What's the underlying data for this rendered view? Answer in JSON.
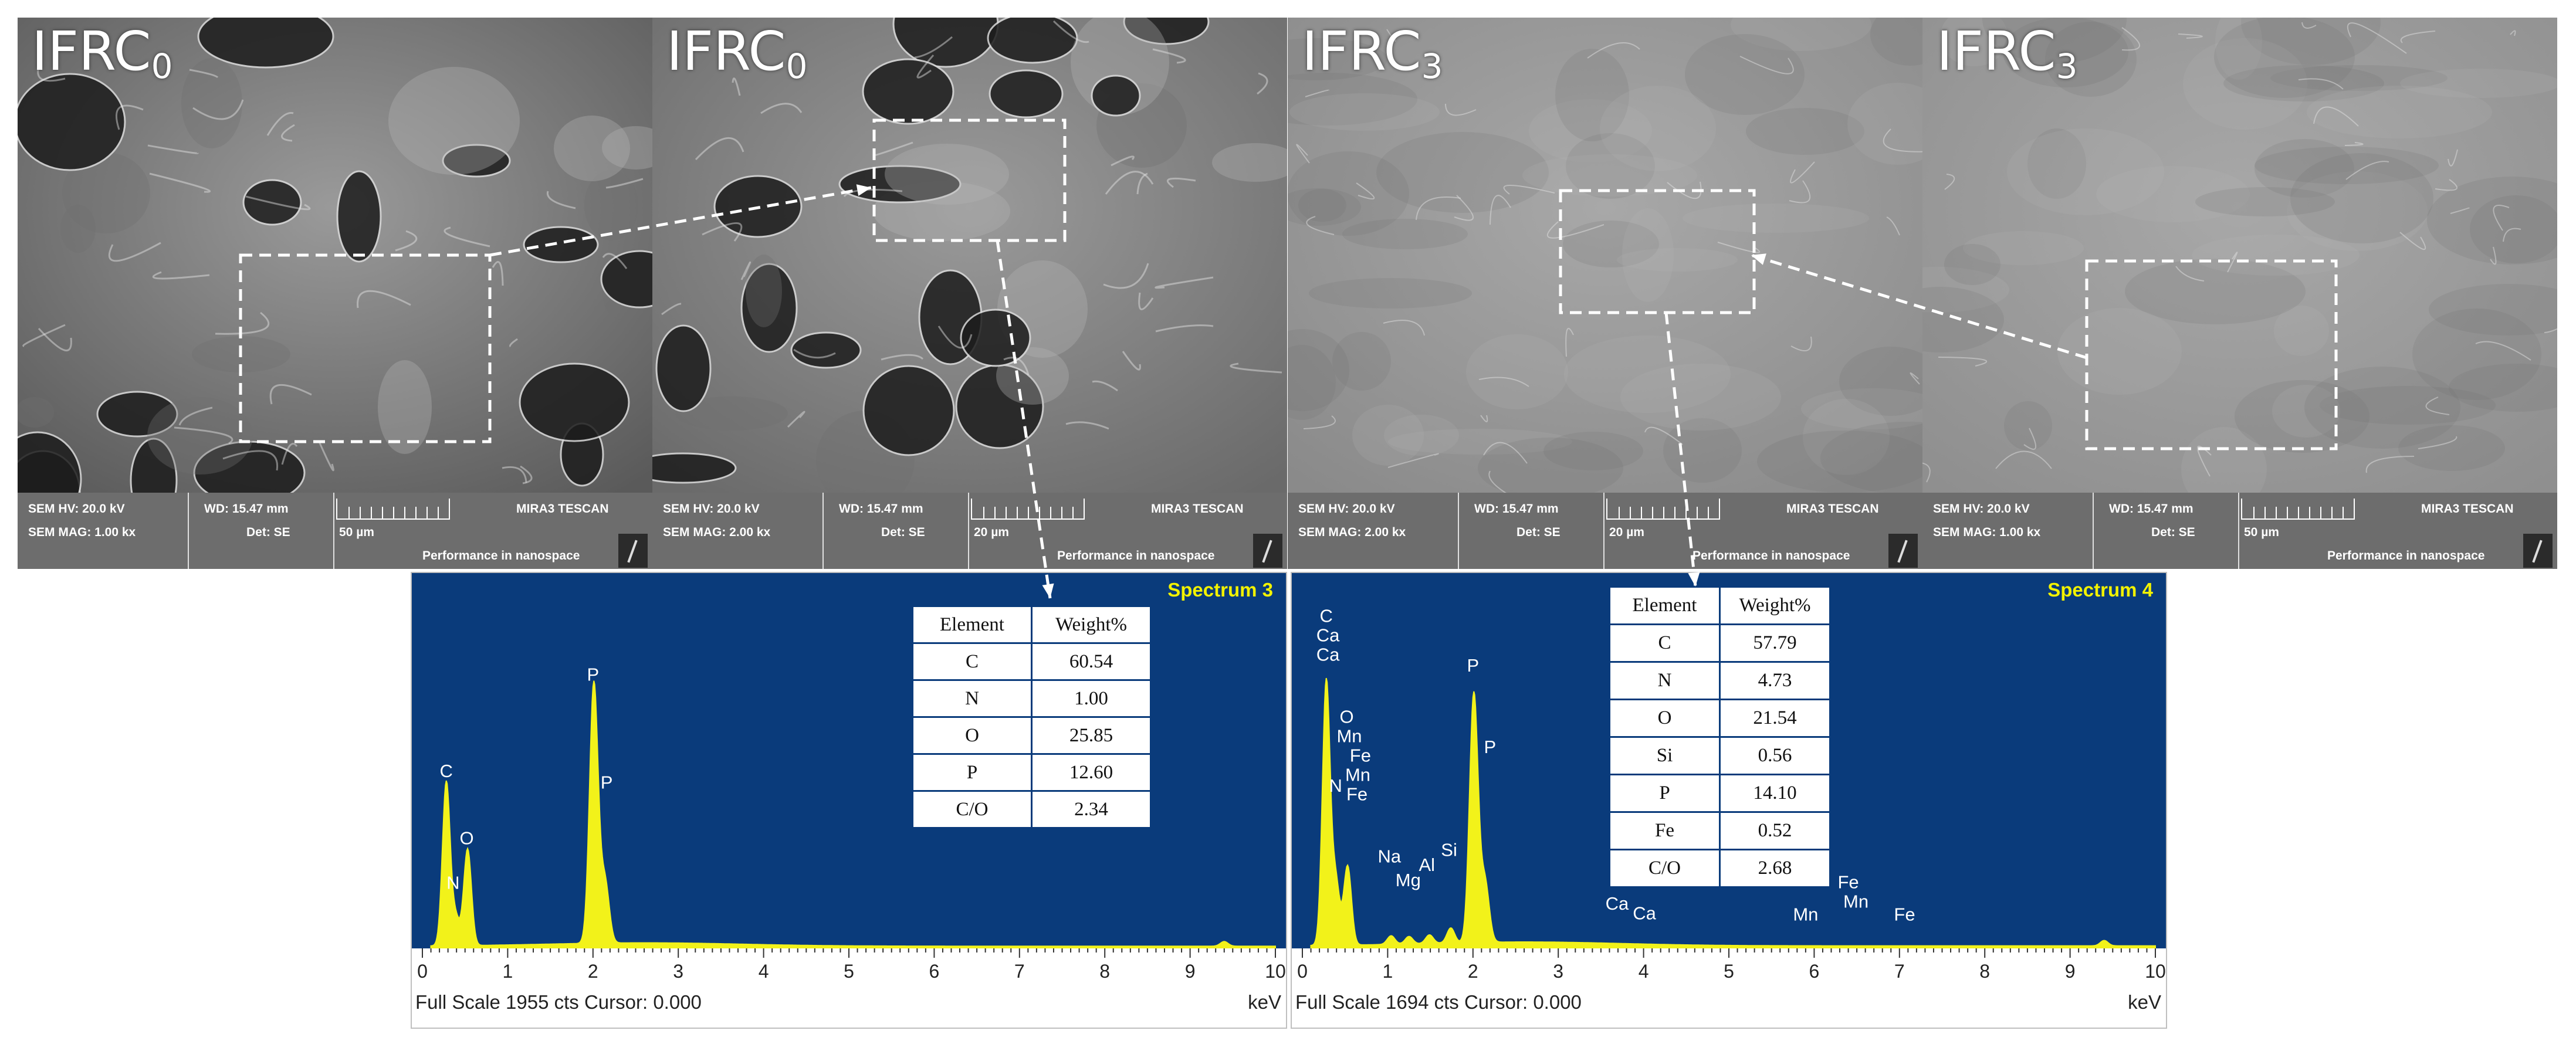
{
  "sem_panels": [
    {
      "label_main": "IFRC",
      "label_sub": "0",
      "hv": "SEM HV: 20.0 kV",
      "wd": "WD: 15.47 mm",
      "brand": "MIRA3 TESCAN",
      "mag": "SEM MAG: 1.00 kx",
      "det": "Det: SE",
      "scale": "50 µm",
      "slogan": "Performance in nanospace"
    },
    {
      "label_main": "IFRC",
      "label_sub": "0",
      "hv": "SEM HV: 20.0 kV",
      "wd": "WD: 15.47 mm",
      "brand": "MIRA3 TESCAN",
      "mag": "SEM MAG: 2.00 kx",
      "det": "Det: SE",
      "scale": "20 µm",
      "slogan": "Performance in nanospace"
    },
    {
      "label_main": "IFRC",
      "label_sub": "3",
      "hv": "SEM HV: 20.0 kV",
      "wd": "WD: 15.47 mm",
      "brand": "MIRA3 TESCAN",
      "mag": "SEM MAG: 2.00 kx",
      "det": "Det: SE",
      "scale": "20 µm",
      "slogan": "Performance in nanospace"
    },
    {
      "label_main": "IFRC",
      "label_sub": "3",
      "hv": "SEM HV: 20.0 kV",
      "wd": "WD: 15.47 mm",
      "brand": "MIRA3 TESCAN",
      "mag": "SEM MAG: 1.00 kx",
      "det": "Det: SE",
      "scale": "50 µm",
      "slogan": "Performance in nanospace"
    }
  ],
  "eds_panels": [
    {
      "title": "Spectrum 3",
      "footer": "Full Scale 1955 cts Cursor: 0.000",
      "unit": "keV",
      "table_header": [
        "Element",
        "Weight%"
      ],
      "table_rows": [
        [
          "C",
          "60.54"
        ],
        [
          "N",
          "1.00"
        ],
        [
          "O",
          "25.85"
        ],
        [
          "P",
          "12.60"
        ],
        [
          "C/O",
          "2.34"
        ]
      ]
    },
    {
      "title": "Spectrum 4",
      "footer": "Full Scale 1694 cts Cursor: 0.000",
      "unit": "keV",
      "table_header": [
        "Element",
        "Weight%"
      ],
      "table_rows": [
        [
          "C",
          "57.79"
        ],
        [
          "N",
          "4.73"
        ],
        [
          "O",
          "21.54"
        ],
        [
          "Si",
          "0.56"
        ],
        [
          "P",
          "14.10"
        ],
        [
          "Fe",
          "0.52"
        ],
        [
          "C/O",
          "2.68"
        ]
      ]
    }
  ],
  "chart_data": [
    {
      "type": "line",
      "title": "Spectrum 3",
      "xlabel": "keV",
      "xlim": [
        0,
        10
      ],
      "ylim": [
        0,
        1955
      ],
      "x_ticks": [
        "0",
        "1",
        "2",
        "3",
        "4",
        "5",
        "6",
        "7",
        "8",
        "9",
        "10"
      ],
      "peaks": [
        {
          "label": "C",
          "x": 0.28,
          "y": 880
        },
        {
          "label": "N",
          "x": 0.39,
          "y": 150
        },
        {
          "label": "O",
          "x": 0.53,
          "y": 520
        },
        {
          "label": "P",
          "x": 2.01,
          "y": 1400
        },
        {
          "label": "P",
          "x": 2.14,
          "y": 330
        },
        {
          "label": "",
          "x": 9.4,
          "y": 25
        }
      ],
      "peak_labels": [
        {
          "text": "C",
          "x": 0.28,
          "y": 920
        },
        {
          "text": "N",
          "x": 0.36,
          "y": 320
        },
        {
          "text": "O",
          "x": 0.52,
          "y": 560
        },
        {
          "text": "P",
          "x": 2.0,
          "y": 1440
        },
        {
          "text": "P",
          "x": 2.16,
          "y": 860
        }
      ]
    },
    {
      "type": "line",
      "title": "Spectrum 4",
      "xlabel": "keV",
      "xlim": [
        0,
        10
      ],
      "ylim": [
        0,
        1694
      ],
      "x_ticks": [
        "0",
        "1",
        "2",
        "3",
        "4",
        "5",
        "6",
        "7",
        "8",
        "9",
        "10"
      ],
      "peaks": [
        {
          "label": "C",
          "x": 0.28,
          "y": 1230
        },
        {
          "label": "N",
          "x": 0.39,
          "y": 300
        },
        {
          "label": "O",
          "x": 0.53,
          "y": 370
        },
        {
          "label": "Na",
          "x": 1.04,
          "y": 40
        },
        {
          "label": "Mg",
          "x": 1.25,
          "y": 35
        },
        {
          "label": "Al",
          "x": 1.49,
          "y": 40
        },
        {
          "label": "Si",
          "x": 1.74,
          "y": 70
        },
        {
          "label": "P",
          "x": 2.01,
          "y": 1160
        },
        {
          "label": "P",
          "x": 2.14,
          "y": 280
        },
        {
          "label": "",
          "x": 9.4,
          "y": 25
        }
      ],
      "peak_labels": [
        {
          "text": "C",
          "x": 0.28,
          "y": 1520
        },
        {
          "text": "Ca",
          "x": 0.3,
          "y": 1430
        },
        {
          "text": "Ca",
          "x": 0.3,
          "y": 1340
        },
        {
          "text": "O",
          "x": 0.52,
          "y": 1050
        },
        {
          "text": "Mn",
          "x": 0.55,
          "y": 960
        },
        {
          "text": "Fe",
          "x": 0.68,
          "y": 870
        },
        {
          "text": "Mn",
          "x": 0.65,
          "y": 780
        },
        {
          "text": "N",
          "x": 0.39,
          "y": 730
        },
        {
          "text": "Fe",
          "x": 0.64,
          "y": 690
        },
        {
          "text": "Na",
          "x": 1.02,
          "y": 400
        },
        {
          "text": "Al",
          "x": 1.46,
          "y": 360
        },
        {
          "text": "Si",
          "x": 1.72,
          "y": 430
        },
        {
          "text": "Mg",
          "x": 1.24,
          "y": 290
        },
        {
          "text": "P",
          "x": 2.0,
          "y": 1290
        },
        {
          "text": "P",
          "x": 2.2,
          "y": 910
        },
        {
          "text": "Ca",
          "x": 3.69,
          "y": 180
        },
        {
          "text": "Ca",
          "x": 4.01,
          "y": 135
        },
        {
          "text": "Mn",
          "x": 5.9,
          "y": 130
        },
        {
          "text": "Fe",
          "x": 6.4,
          "y": 280
        },
        {
          "text": "Mn",
          "x": 6.49,
          "y": 190
        },
        {
          "text": "Fe",
          "x": 7.06,
          "y": 130
        }
      ]
    }
  ]
}
